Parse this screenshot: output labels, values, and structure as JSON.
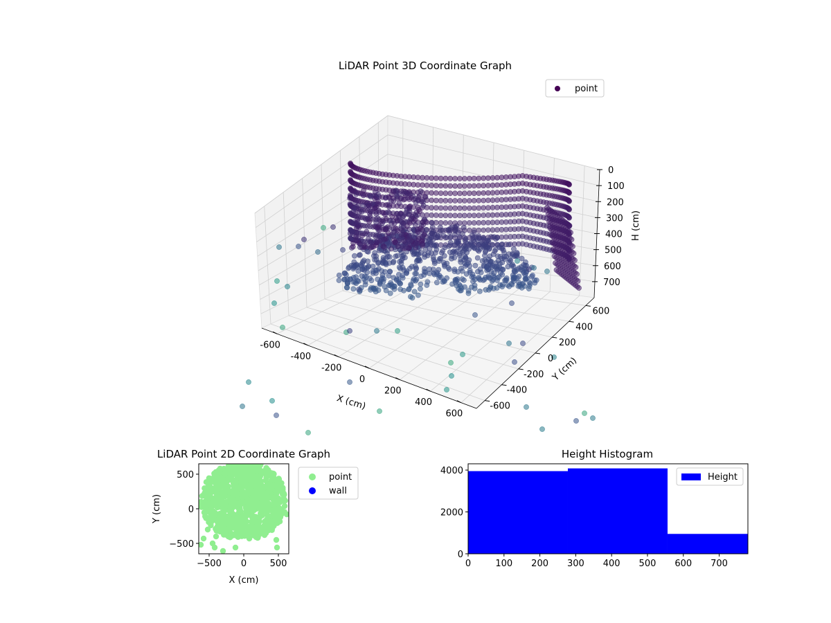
{
  "chart_data": [
    {
      "type": "scatter",
      "projection": "3d",
      "title": "LiDAR Point 3D Coordinate Graph",
      "xlabel": "X (cm)",
      "ylabel": "Y (cm)",
      "zlabel": "H (cm)",
      "xlim": [
        -700,
        700
      ],
      "ylim": [
        -700,
        700
      ],
      "zlim": [
        0,
        800
      ],
      "z_inverted": true,
      "xticks": [
        "-600",
        "-400",
        "-200",
        "0",
        "200",
        "400",
        "600"
      ],
      "yticks": [
        "-600",
        "-400",
        "-200",
        "0",
        "200",
        "400",
        "600"
      ],
      "zticks": [
        "0",
        "100",
        "200",
        "300",
        "400",
        "500",
        "600",
        "700"
      ],
      "grid": true,
      "colormap": "viridis",
      "legend": {
        "position": "top-right",
        "entries": [
          {
            "label": "point",
            "color": "#440154"
          }
        ]
      }
    },
    {
      "type": "scatter",
      "title": "LiDAR Point 2D Coordinate Graph",
      "xlabel": "X (cm)",
      "ylabel": "Y (cm)",
      "xlim": [
        -650,
        650
      ],
      "ylim": [
        -650,
        650
      ],
      "xticks": [
        -500,
        0,
        500
      ],
      "yticks": [
        -500,
        0,
        500
      ],
      "series": [
        {
          "name": "point",
          "color": "#90ee90"
        },
        {
          "name": "wall",
          "color": "#0000ff"
        }
      ],
      "legend": {
        "position": "outside-right"
      }
    },
    {
      "type": "bar",
      "histogram": true,
      "title": "Height Histogram",
      "xlim": [
        0,
        780
      ],
      "ylim": [
        0,
        4300
      ],
      "xticks": [
        0,
        100,
        200,
        300,
        400,
        500,
        600,
        700
      ],
      "yticks": [
        0,
        2000,
        4000
      ],
      "bins": [
        {
          "x0": 0,
          "x1": 278,
          "count": 3950
        },
        {
          "x0": 278,
          "x1": 556,
          "count": 4080
        },
        {
          "x0": 556,
          "x1": 780,
          "count": 950
        }
      ],
      "series": [
        {
          "name": "Height",
          "color": "#0000ff"
        }
      ],
      "legend": {
        "position": "top-right"
      }
    }
  ]
}
